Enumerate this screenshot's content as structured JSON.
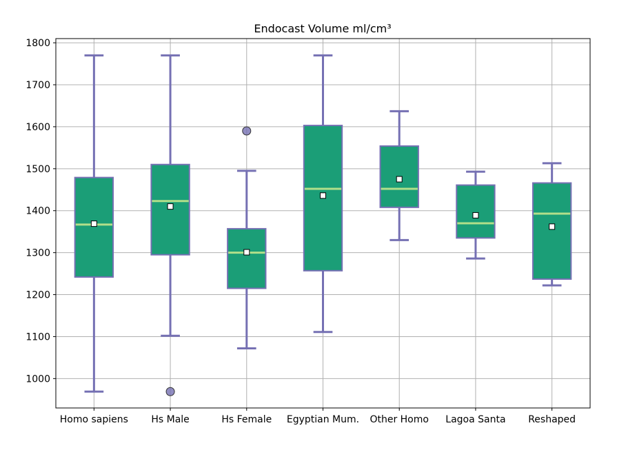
{
  "chart_data": {
    "type": "box",
    "title": "Endocast Volume ml/cm³",
    "xlabel": "",
    "ylabel": "",
    "ylim": [
      930,
      1810
    ],
    "yticks": [
      1000,
      1100,
      1200,
      1300,
      1400,
      1500,
      1600,
      1700,
      1800
    ],
    "grid": true,
    "categories": [
      "Homo sapiens",
      "Hs Male",
      "Hs Female",
      "Egyptian Mum.",
      "Other Homo",
      "Lagoa Santa",
      "Reshaped"
    ],
    "boxes": [
      {
        "whisker_low": 969,
        "q1": 1242,
        "median": 1367,
        "q3": 1479,
        "whisker_high": 1770,
        "mean": 1369,
        "fliers": []
      },
      {
        "whisker_low": 1102,
        "q1": 1295,
        "median": 1423,
        "q3": 1510,
        "whisker_high": 1770,
        "mean": 1410,
        "fliers": [
          969
        ]
      },
      {
        "whisker_low": 1072,
        "q1": 1215,
        "median": 1300,
        "q3": 1357,
        "whisker_high": 1495,
        "mean": 1301,
        "fliers": [
          1590
        ]
      },
      {
        "whisker_low": 1111,
        "q1": 1257,
        "median": 1452,
        "q3": 1603,
        "whisker_high": 1770,
        "mean": 1436,
        "fliers": []
      },
      {
        "whisker_low": 1330,
        "q1": 1408,
        "median": 1452,
        "q3": 1554,
        "whisker_high": 1637,
        "mean": 1475,
        "fliers": []
      },
      {
        "whisker_low": 1286,
        "q1": 1335,
        "median": 1370,
        "q3": 1461,
        "whisker_high": 1493,
        "mean": 1389,
        "fliers": []
      },
      {
        "whisker_low": 1222,
        "q1": 1237,
        "median": 1393,
        "q3": 1466,
        "whisker_high": 1513,
        "mean": 1362,
        "fliers": []
      }
    ],
    "colors": {
      "box_fill": "#1b9e77",
      "box_edge": "#7570b3",
      "whisker": "#7570b3",
      "median": "#b2df8a",
      "mean_marker": "#ffffff",
      "flier": "#7570b3",
      "grid": "#b0b0b0"
    }
  }
}
